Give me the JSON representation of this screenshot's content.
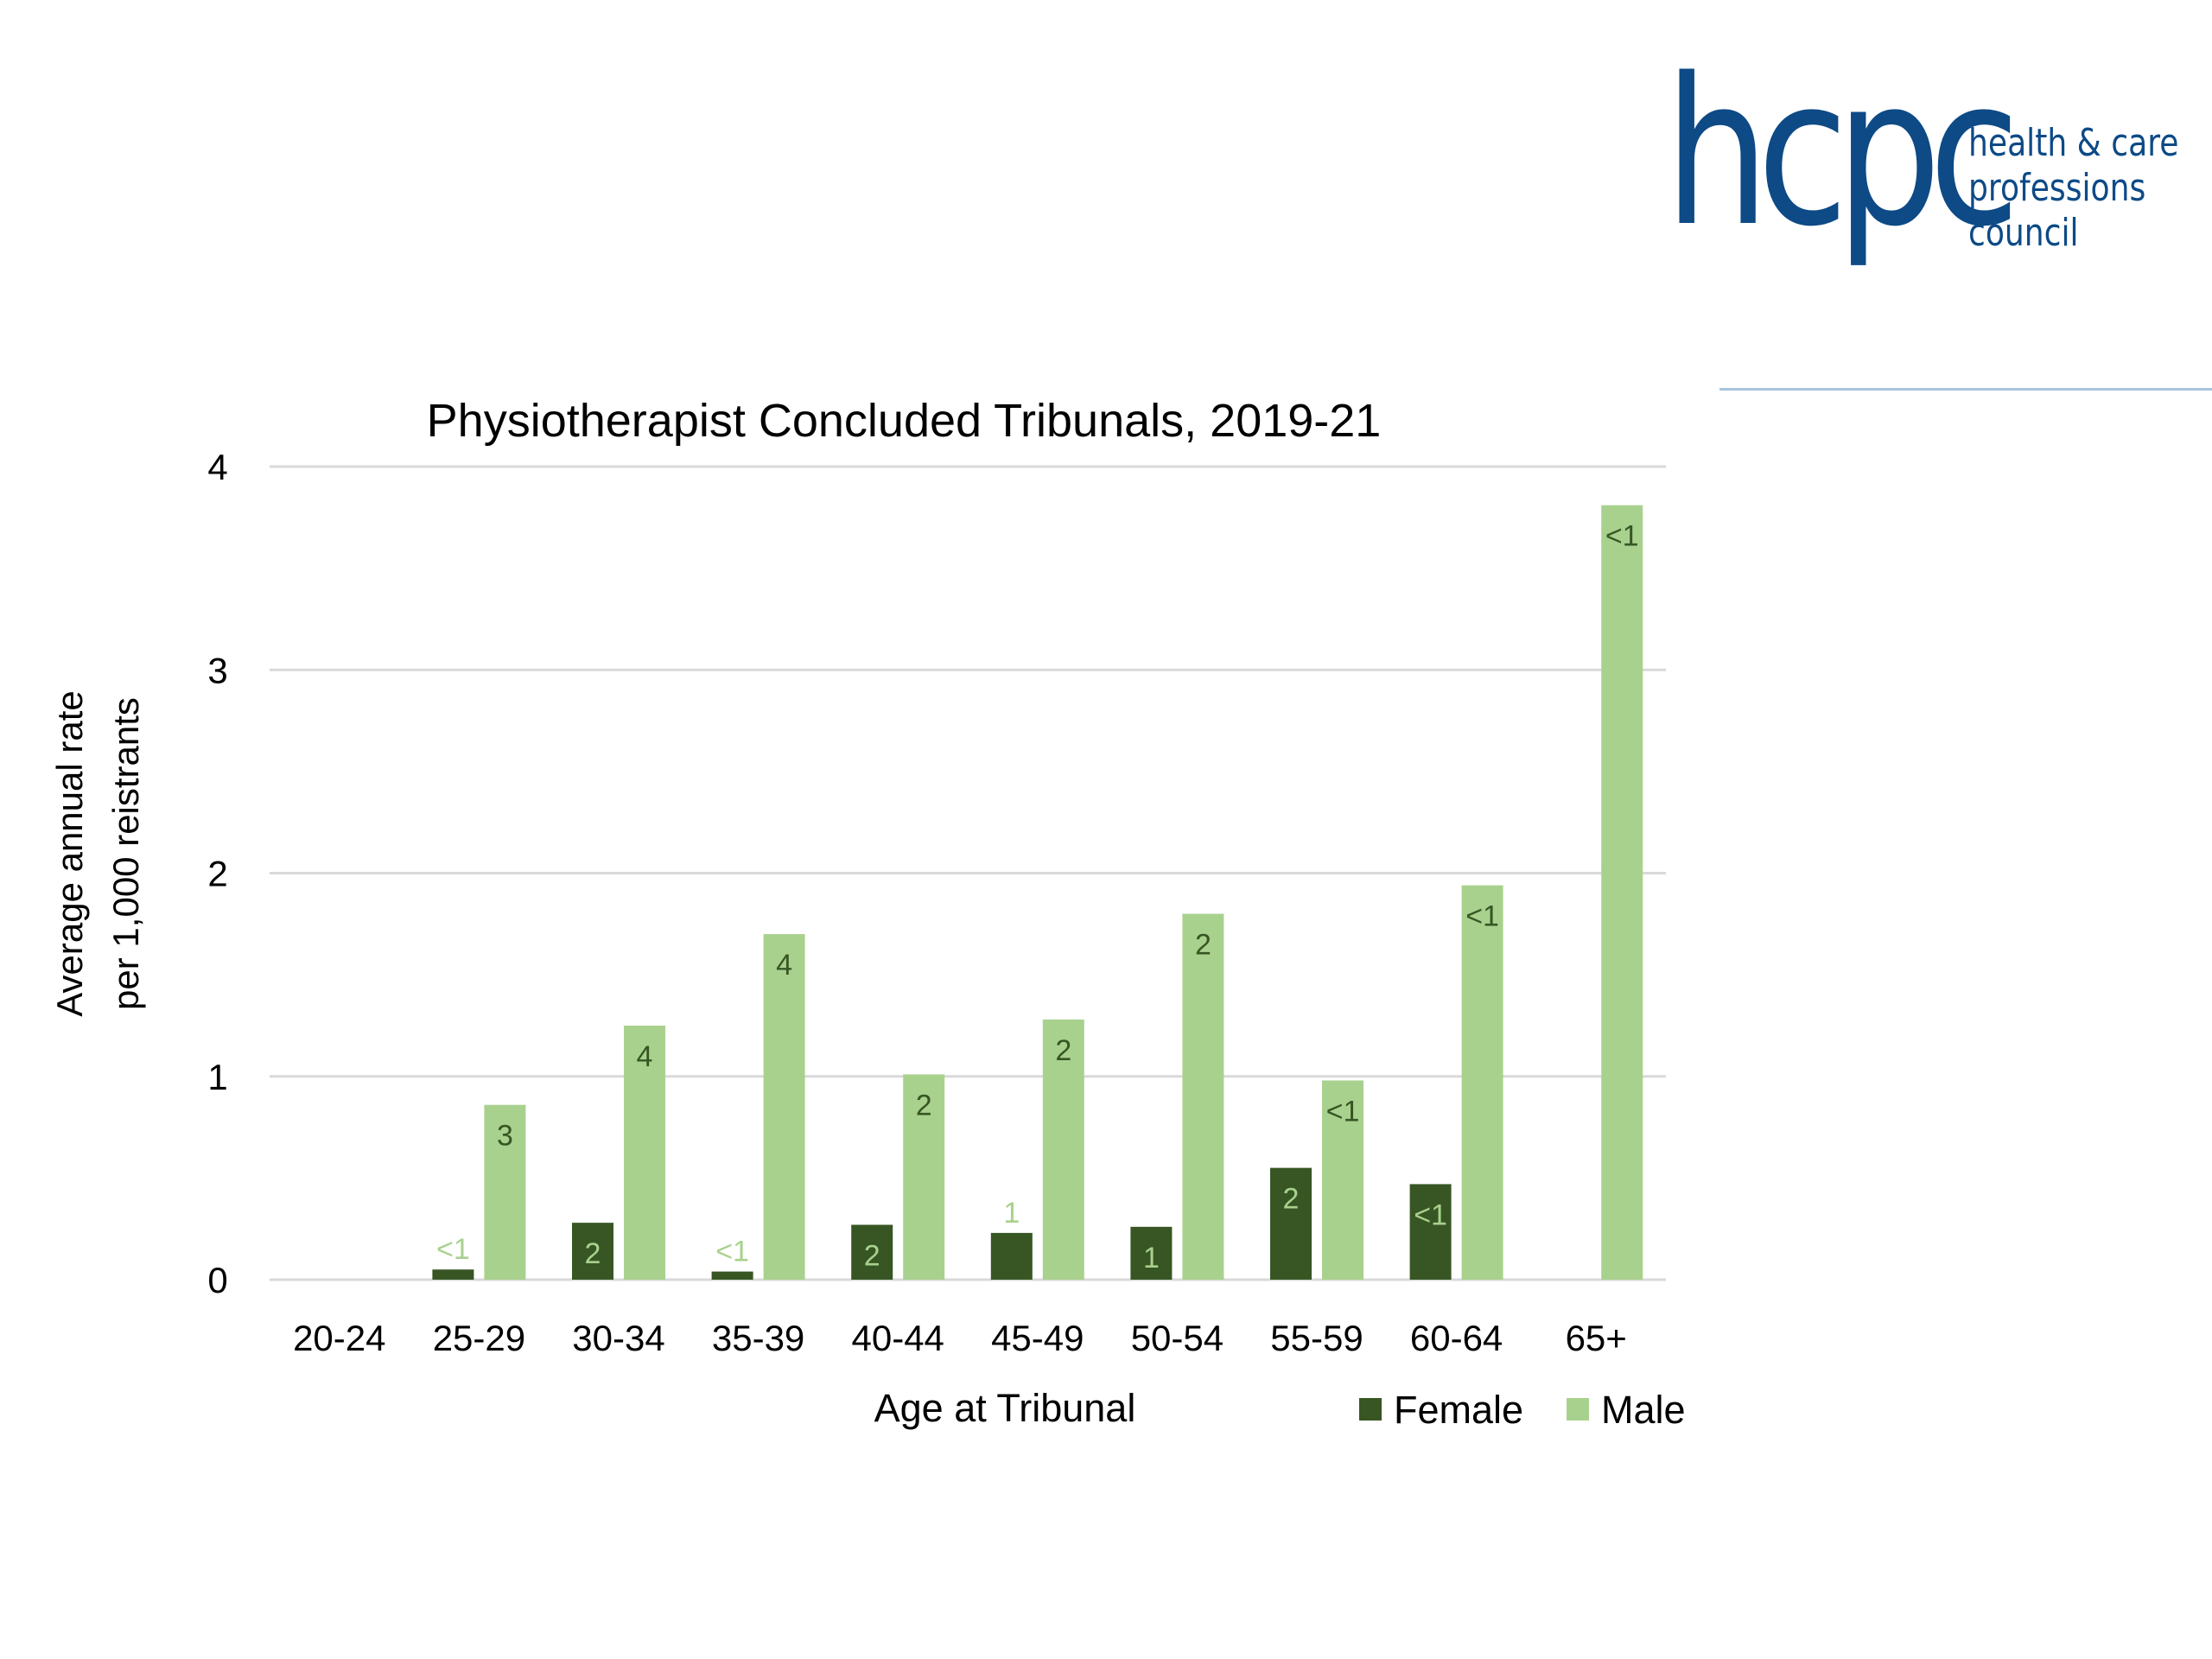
{
  "logo": {
    "wordmark": "hcpc",
    "sub_lines": [
      "health & care",
      "professions",
      "council"
    ]
  },
  "colors": {
    "brand": "#0d4a86",
    "female": "#375623",
    "male": "#a9d18e",
    "grid": "#d9d9d9"
  },
  "chart_data": {
    "type": "bar",
    "title": "Physiotherapist Concluded Tribunals, 2019-21",
    "xlabel": "Age at Tribunal",
    "ylabel_lines": [
      "Average annual rate",
      "per 1,000 reistrants"
    ],
    "ylim": [
      0,
      4
    ],
    "yticks": [
      "0",
      "1",
      "2",
      "3",
      "4"
    ],
    "grid": true,
    "legend_position": "bottom-right",
    "categories": [
      "20-24",
      "25-29",
      "30-34",
      "35-39",
      "40-44",
      "45-49",
      "50-54",
      "55-59",
      "60-64",
      "65+"
    ],
    "series": [
      {
        "name": "Female",
        "values": [
          0,
          0.05,
          0.28,
          0.04,
          0.27,
          0.23,
          0.26,
          0.55,
          0.47,
          0
        ],
        "labels": [
          "",
          "<1",
          "2",
          "<1",
          "2",
          "1",
          "1",
          "2",
          "<1",
          ""
        ]
      },
      {
        "name": "Male",
        "values": [
          0,
          0.86,
          1.25,
          1.7,
          1.01,
          1.28,
          1.8,
          0.98,
          1.94,
          3.81
        ],
        "labels": [
          "",
          "3",
          "4",
          "4",
          "2",
          "2",
          "2",
          "<1",
          "<1",
          "<1"
        ]
      }
    ]
  }
}
